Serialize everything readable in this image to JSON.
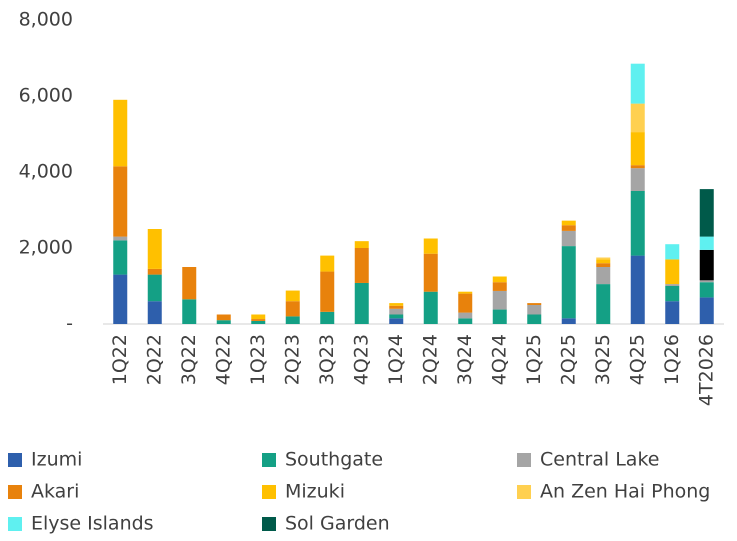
{
  "chart_data": {
    "type": "bar",
    "stacked": true,
    "categories": [
      "1Q22",
      "2Q22",
      "3Q22",
      "4Q22",
      "1Q23",
      "2Q23",
      "3Q23",
      "4Q23",
      "1Q24",
      "2Q24",
      "3Q24",
      "4Q24",
      "1Q25",
      "2Q25",
      "3Q25",
      "4Q25",
      "1Q26",
      "4T2026"
    ],
    "series": [
      {
        "name": "Izumi",
        "color": "#2e5fac",
        "values": [
          1300,
          600,
          null,
          null,
          null,
          null,
          null,
          null,
          150,
          null,
          null,
          null,
          null,
          150,
          null,
          1800,
          600,
          700
        ]
      },
      {
        "name": "Southgate",
        "color": "#14a085",
        "values": [
          900,
          700,
          650,
          100,
          80,
          200,
          320,
          1080,
          100,
          850,
          150,
          380,
          250,
          1900,
          1050,
          1700,
          400,
          400
        ]
      },
      {
        "name": "Central Lake",
        "color": "#a5a5a5",
        "values": [
          100,
          null,
          null,
          null,
          null,
          null,
          null,
          null,
          150,
          null,
          150,
          490,
          250,
          400,
          450,
          600,
          50,
          50
        ]
      },
      {
        "name": "Akari",
        "color": "#e8820c",
        "values": [
          1850,
          150,
          850,
          150,
          50,
          400,
          1060,
          920,
          80,
          1000,
          500,
          230,
          50,
          150,
          100,
          80,
          null,
          null
        ]
      },
      {
        "name": "Mizuki",
        "color": "#ffc000",
        "values": [
          1750,
          1050,
          null,
          null,
          120,
          280,
          420,
          180,
          70,
          400,
          50,
          150,
          null,
          120,
          100,
          870,
          650,
          null
        ]
      },
      {
        "name": "An Zen Hai Phong",
        "color": "#ffd050",
        "values": [
          null,
          null,
          null,
          null,
          null,
          null,
          null,
          null,
          null,
          null,
          null,
          null,
          null,
          null,
          50,
          750,
          null,
          null
        ]
      },
      {
        "color": "#000000",
        "values": [
          null,
          null,
          null,
          null,
          null,
          null,
          null,
          null,
          null,
          null,
          null,
          null,
          null,
          null,
          null,
          null,
          null,
          800
        ]
      },
      {
        "name": "Elyse Islands",
        "color": "#5ff0f0",
        "values": [
          null,
          null,
          null,
          null,
          null,
          null,
          null,
          null,
          null,
          null,
          null,
          null,
          null,
          null,
          null,
          1050,
          400,
          350
        ]
      },
      {
        "name": "Sol Garden",
        "color": "#005a4a",
        "values": [
          null,
          null,
          null,
          null,
          null,
          null,
          null,
          null,
          null,
          null,
          null,
          null,
          null,
          null,
          null,
          null,
          null,
          1250
        ]
      }
    ],
    "ylim": [
      0,
      8000
    ],
    "yticks": [
      {
        "value": 0,
        "label": "-"
      },
      {
        "value": 2000,
        "label": "2,000"
      },
      {
        "value": 4000,
        "label": "4,000"
      },
      {
        "value": 6000,
        "label": "6,000"
      },
      {
        "value": 8000,
        "label": "8,000"
      }
    ],
    "grid": false,
    "legend": "bottom"
  }
}
